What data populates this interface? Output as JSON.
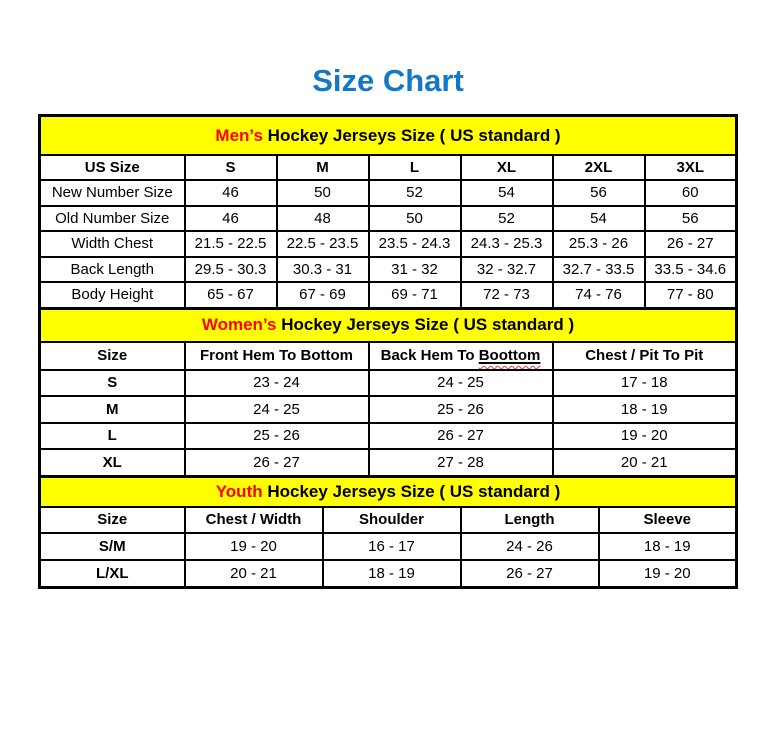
{
  "page": {
    "title": "Size Chart",
    "title_color": "#1478c8",
    "banner_bg": "#ffff00",
    "accent_red": "#ff0000",
    "border_color": "#000000"
  },
  "tables": [
    {
      "id": "mens",
      "banner": {
        "highlight": "Men’s",
        "rest": " Hockey Jerseys Size ( US standard )"
      },
      "columns": [
        "US Size",
        "S",
        "M",
        "L",
        "XL",
        "2XL",
        "3XL"
      ],
      "rows": [
        [
          "New Number Size",
          "46",
          "50",
          "52",
          "54",
          "56",
          "60"
        ],
        [
          "Old Number Size",
          "46",
          "48",
          "50",
          "52",
          "54",
          "56"
        ],
        [
          "Width Chest",
          "21.5 - 22.5",
          "22.5 - 23.5",
          "23.5 - 24.3",
          "24.3 - 25.3",
          "25.3 - 26",
          "26 - 27"
        ],
        [
          "Back Length",
          "29.5 - 30.3",
          "30.3 - 31",
          "31 - 32",
          "32 - 32.7",
          "32.7 - 33.5",
          "33.5 - 34.6"
        ],
        [
          "Body Height",
          "65 - 67",
          "67 - 69",
          "69 - 71",
          "72 - 73",
          "74 - 76",
          "77 - 80"
        ]
      ]
    },
    {
      "id": "womens",
      "banner": {
        "highlight": "Women’s",
        "rest": " Hockey Jerseys Size ( US standard )"
      },
      "columns": [
        "Size",
        "Front Hem To Bottom",
        "Back Hem To Boottom",
        "Chest / Pit To Pit"
      ],
      "column_underline": {
        "index": 2,
        "word": "Boottom"
      },
      "rows": [
        [
          "S",
          "23 - 24",
          "24 - 25",
          "17 - 18"
        ],
        [
          "M",
          "24 - 25",
          "25 - 26",
          "18 - 19"
        ],
        [
          "L",
          "25 - 26",
          "26 - 27",
          "19 - 20"
        ],
        [
          "XL",
          "26 - 27",
          "27 - 28",
          "20 - 21"
        ]
      ]
    },
    {
      "id": "youth",
      "banner": {
        "highlight": "Youth",
        "rest": " Hockey Jerseys Size ( US standard )"
      },
      "columns": [
        "Size",
        "Chest / Width",
        "Shoulder",
        "Length",
        "Sleeve"
      ],
      "rows": [
        [
          "S/M",
          "19 - 20",
          "16 - 17",
          "24 - 26",
          "18 - 19"
        ],
        [
          "L/XL",
          "20 - 21",
          "18 - 19",
          "26 - 27",
          "19 - 20"
        ]
      ]
    }
  ]
}
